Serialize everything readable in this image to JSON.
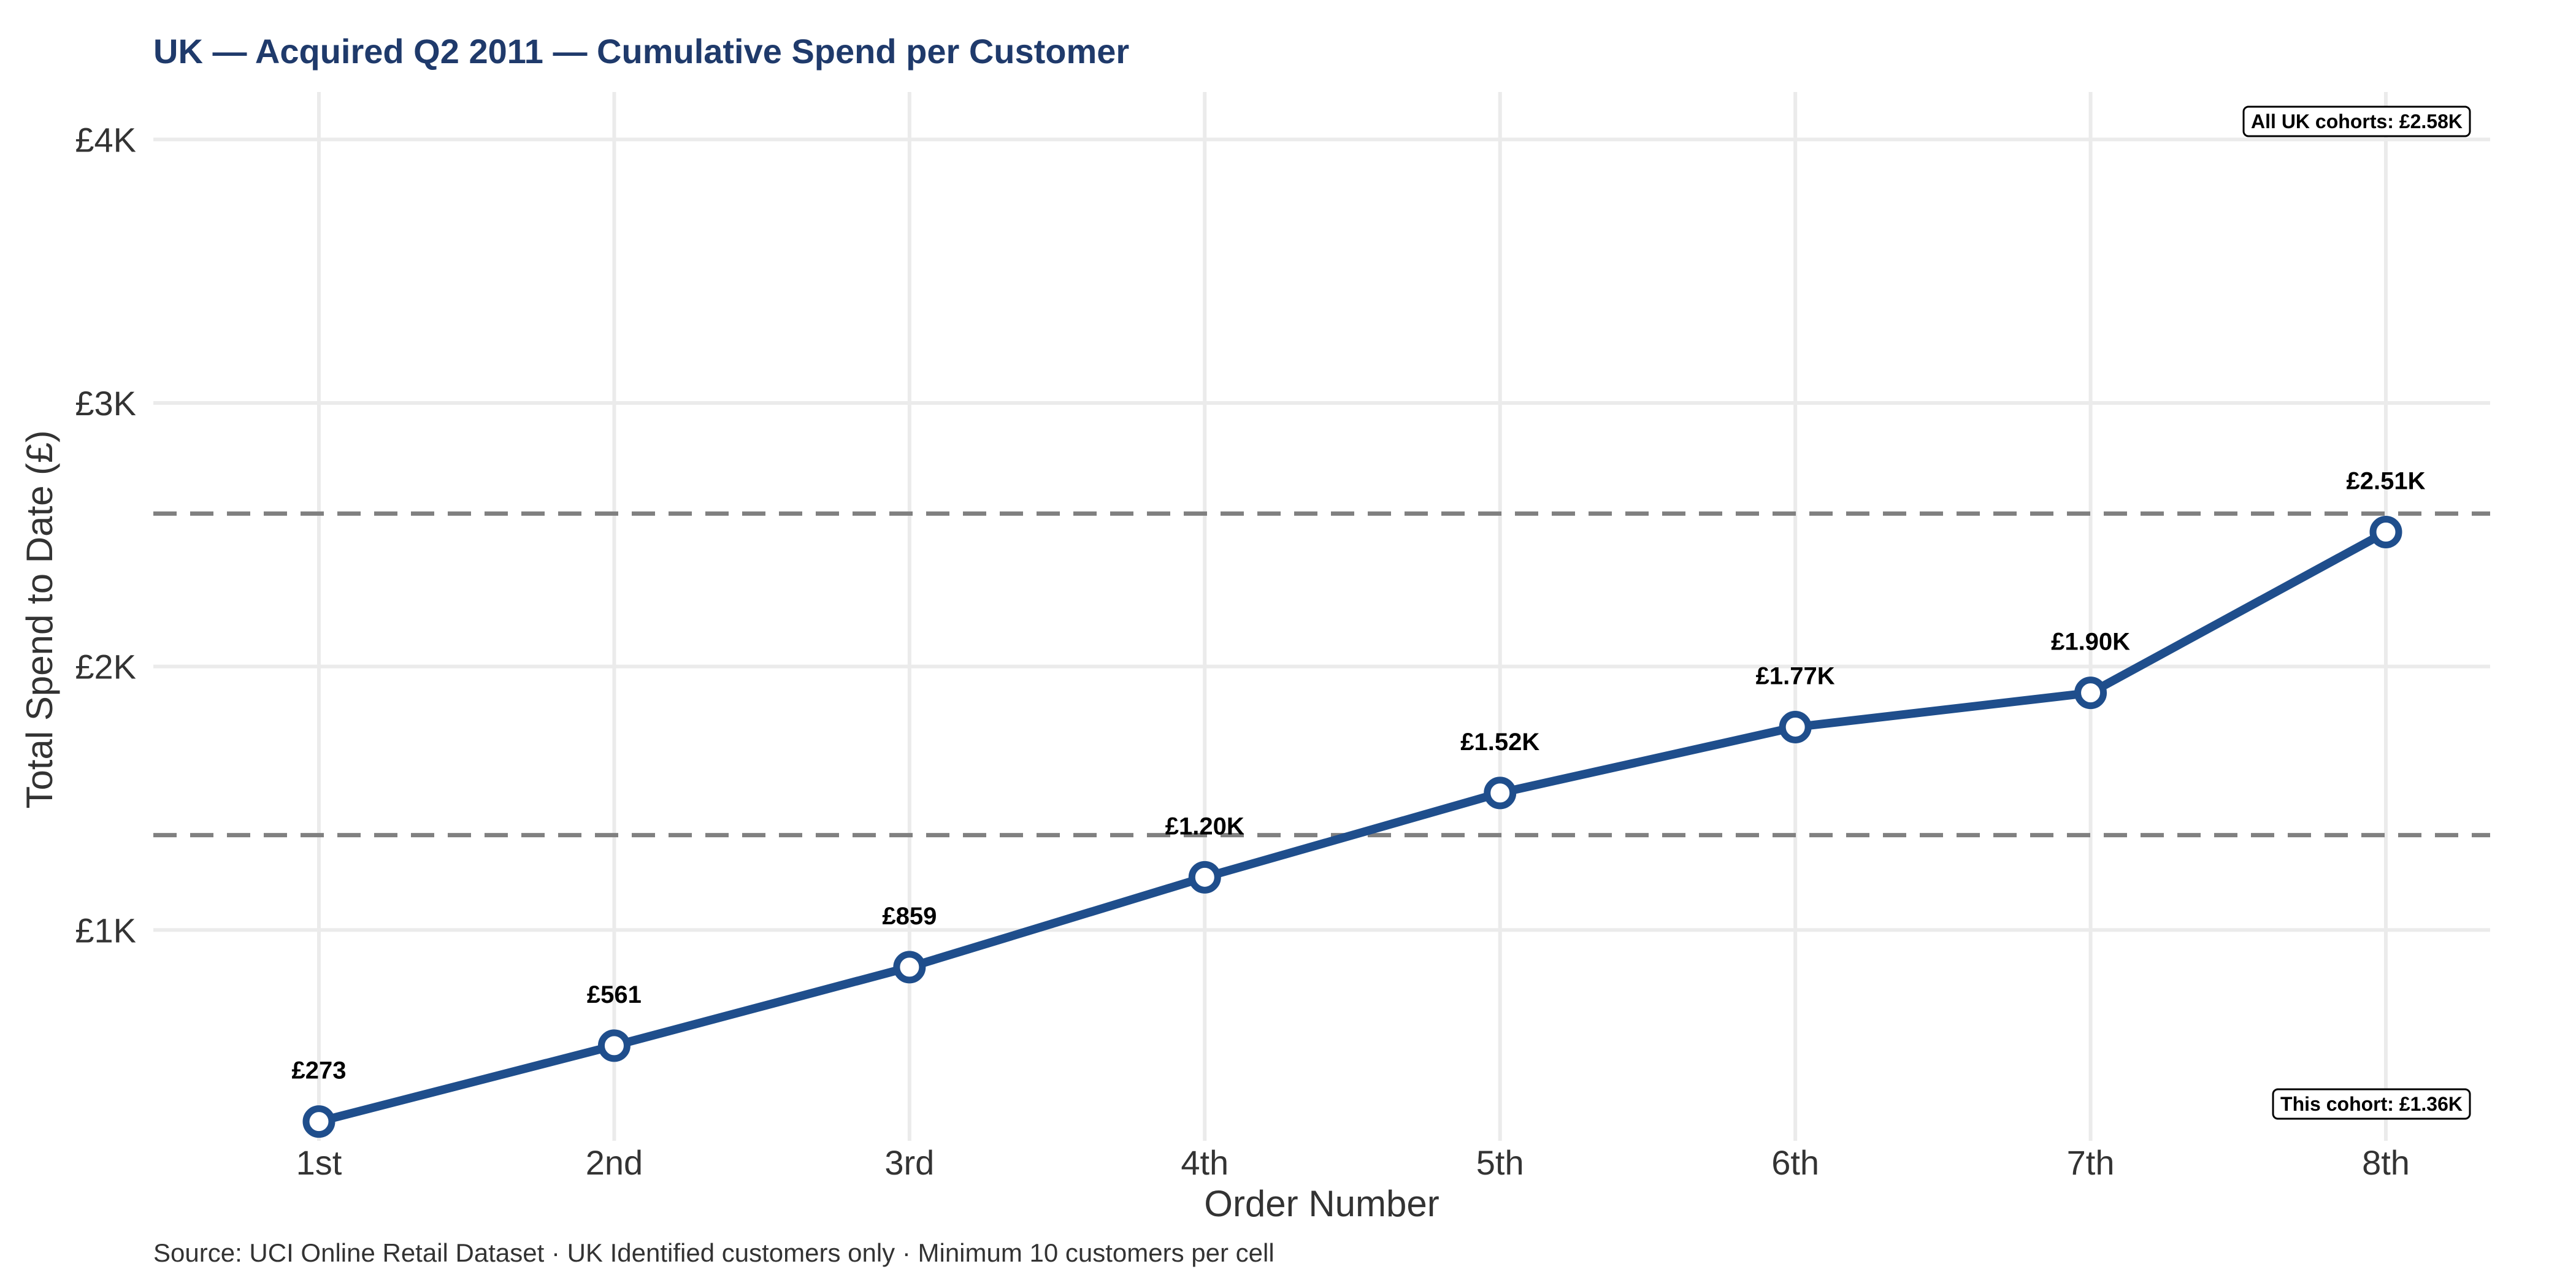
{
  "chart_data": {
    "type": "line",
    "title": "UK — Acquired Q2 2011 — Cumulative Spend per Customer",
    "xlabel": "Order Number",
    "ylabel": "Total Spend to Date (£)",
    "caption": "Source: UCI Online Retail Dataset · UK Identified customers only · Minimum 10 customers per cell",
    "categories": [
      "1st",
      "2nd",
      "3rd",
      "4th",
      "5th",
      "6th",
      "7th",
      "8th"
    ],
    "values": [
      273,
      561,
      859,
      1200,
      1520,
      1770,
      1900,
      2510
    ],
    "data_labels": [
      "£273",
      "£561",
      "£859",
      "£1.20K",
      "£1.52K",
      "£1.77K",
      "£1.90K",
      "£2.51K"
    ],
    "ylim": [
      200,
      4180
    ],
    "yticks": [
      1000,
      2000,
      3000,
      4000
    ],
    "ytick_labels": [
      "£1K",
      "£2K",
      "£3K",
      "£4K"
    ],
    "grid": true,
    "line_color": "#1f4e8c",
    "marker_fill": "#ffffff",
    "reference_lines": [
      {
        "value": 2580,
        "label": "All UK cohorts: £2.58K",
        "label_position": "top-right",
        "color": "#808080"
      },
      {
        "value": 1360,
        "label": "This cohort: £1.36K",
        "label_position": "bottom-right",
        "color": "#808080"
      }
    ]
  }
}
